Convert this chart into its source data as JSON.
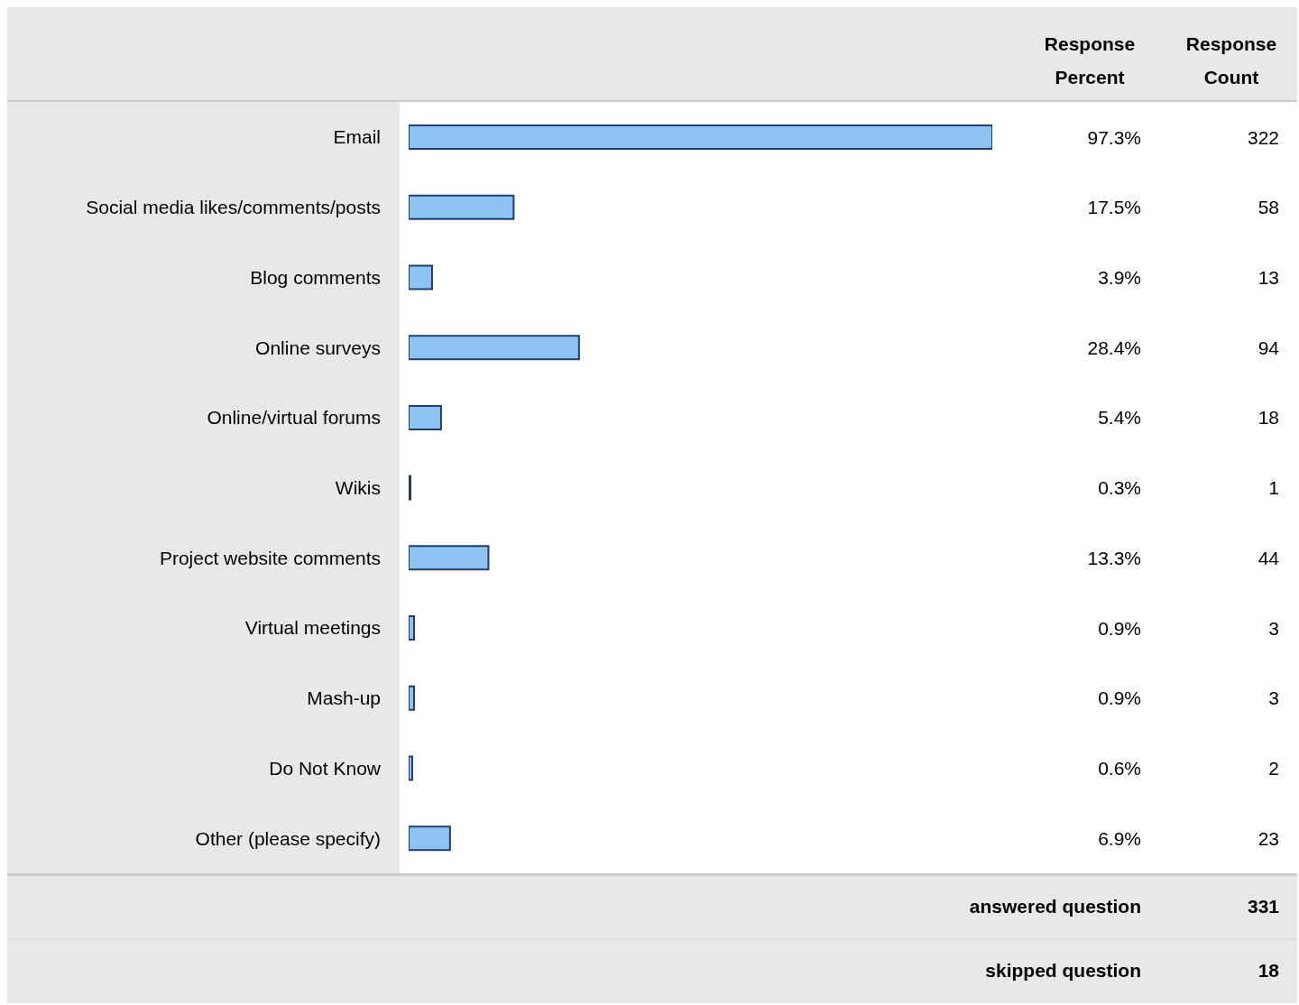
{
  "chart_data": {
    "type": "bar",
    "orientation": "horizontal",
    "categories": [
      "Email",
      "Social media likes/comments/posts",
      "Blog comments",
      "Online surveys",
      "Online/virtual forums",
      "Wikis",
      "Project website comments",
      "Virtual meetings",
      "Mash-up",
      "Do Not Know",
      "Other (please specify)"
    ],
    "values": [
      97.3,
      17.5,
      3.9,
      28.4,
      5.4,
      0.3,
      13.3,
      0.9,
      0.9,
      0.6,
      6.9
    ],
    "value_labels": [
      "97.3%",
      "17.5%",
      "3.9%",
      "28.4%",
      "5.4%",
      "0.3%",
      "13.3%",
      "0.9%",
      "0.9%",
      "0.6%",
      "6.9%"
    ],
    "color": "#8ec4f4",
    "tick_labels": "y",
    "annotations": [
      "Response Percent",
      "Response Count",
      "322",
      "58",
      "13",
      "94",
      "18",
      "1",
      "44",
      "3",
      "3",
      "2",
      "23",
      "answered question",
      "331",
      "skipped question",
      "18"
    ]
  }
}
